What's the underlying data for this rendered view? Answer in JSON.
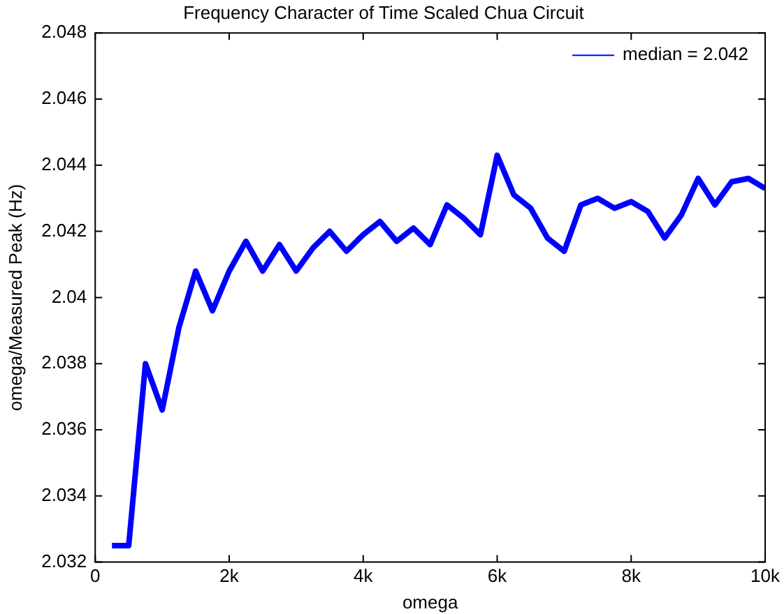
{
  "chart_data": {
    "type": "line",
    "title": "Frequency Character of Time Scaled Chua Circuit",
    "xlabel": "omega",
    "ylabel": "omega/Measured Peak (Hz)",
    "x": [
      250,
      500,
      750,
      1000,
      1250,
      1500,
      1750,
      2000,
      2250,
      2500,
      2750,
      3000,
      3250,
      3500,
      3750,
      4000,
      4250,
      4500,
      4750,
      5000,
      5250,
      5500,
      5750,
      6000,
      6250,
      6500,
      6750,
      7000,
      7250,
      7500,
      7750,
      8000,
      8250,
      8500,
      8750,
      9000,
      9250,
      9500,
      9750,
      10000
    ],
    "series": [
      {
        "name": "median = 2.042",
        "color": "#0000ff",
        "values": [
          2.0325,
          2.0325,
          2.038,
          2.0366,
          2.0391,
          2.0408,
          2.0396,
          2.0408,
          2.0417,
          2.0408,
          2.0416,
          2.0408,
          2.0415,
          2.042,
          2.0414,
          2.0419,
          2.0423,
          2.0417,
          2.0421,
          2.0416,
          2.0428,
          2.0424,
          2.0419,
          2.0443,
          2.0431,
          2.0427,
          2.0418,
          2.0414,
          2.0428,
          2.043,
          2.0427,
          2.0429,
          2.0426,
          2.0418,
          2.0425,
          2.0436,
          2.0428,
          2.0435,
          2.0436,
          2.0433
        ]
      }
    ],
    "xlim": [
      0,
      10000
    ],
    "xticks": [
      0,
      {
        "value": 2000,
        "label": "2k"
      },
      {
        "value": 4000,
        "label": "4k"
      },
      {
        "value": 6000,
        "label": "6k"
      },
      {
        "value": 8000,
        "label": "8k"
      },
      {
        "value": 10000,
        "label": "10k"
      }
    ],
    "ylim": [
      2.032,
      2.048
    ],
    "yticks": [
      2.032,
      2.034,
      2.036,
      2.038,
      2.04,
      2.042,
      2.044,
      2.046,
      2.048
    ],
    "legend": "top right",
    "marker": "none",
    "line_style": "solid"
  }
}
